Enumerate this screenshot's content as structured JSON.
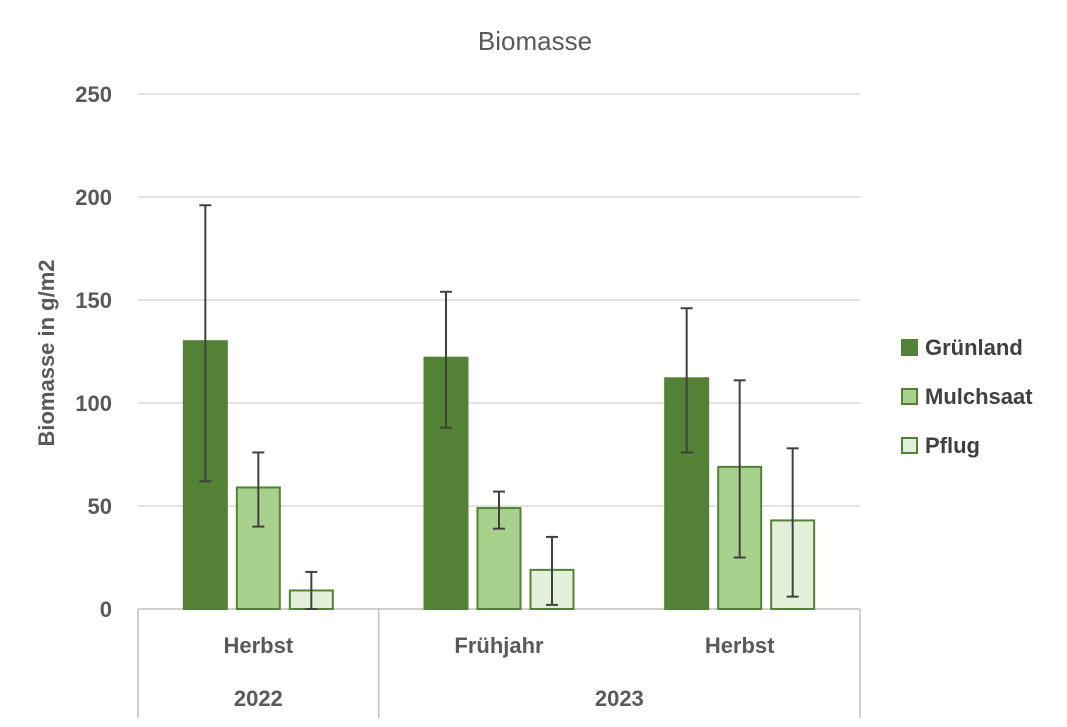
{
  "chart_data": {
    "type": "bar",
    "title": "Biomasse",
    "xlabel": "",
    "ylabel": "Biomasse in g/m2",
    "ylim": [
      0,
      250
    ],
    "yticks": [
      "0",
      "50",
      "100",
      "150",
      "200",
      "250"
    ],
    "grid": true,
    "legend_position": "right",
    "categories": [
      "Herbst",
      "Frühjahr",
      "Herbst"
    ],
    "groups": [
      {
        "label": "2022",
        "span": 1
      },
      {
        "label": "2023",
        "span": 2
      }
    ],
    "series": [
      {
        "name": "Grünland",
        "color": "#538135",
        "fill": "#538135",
        "values": [
          130,
          122,
          112
        ],
        "err_low": [
          62,
          88,
          76
        ],
        "err_high": [
          196,
          154,
          146
        ]
      },
      {
        "name": "Mulchsaat",
        "color": "#548235",
        "fill": "#a9d18e",
        "values": [
          59,
          49,
          69
        ],
        "err_low": [
          40,
          39,
          25
        ],
        "err_high": [
          76,
          57,
          111
        ]
      },
      {
        "name": "Pflug",
        "color": "#548235",
        "fill": "#e2f0d9",
        "values": [
          9,
          19,
          43
        ],
        "err_low": [
          0,
          2,
          6
        ],
        "err_high": [
          18,
          35,
          78
        ]
      }
    ]
  }
}
